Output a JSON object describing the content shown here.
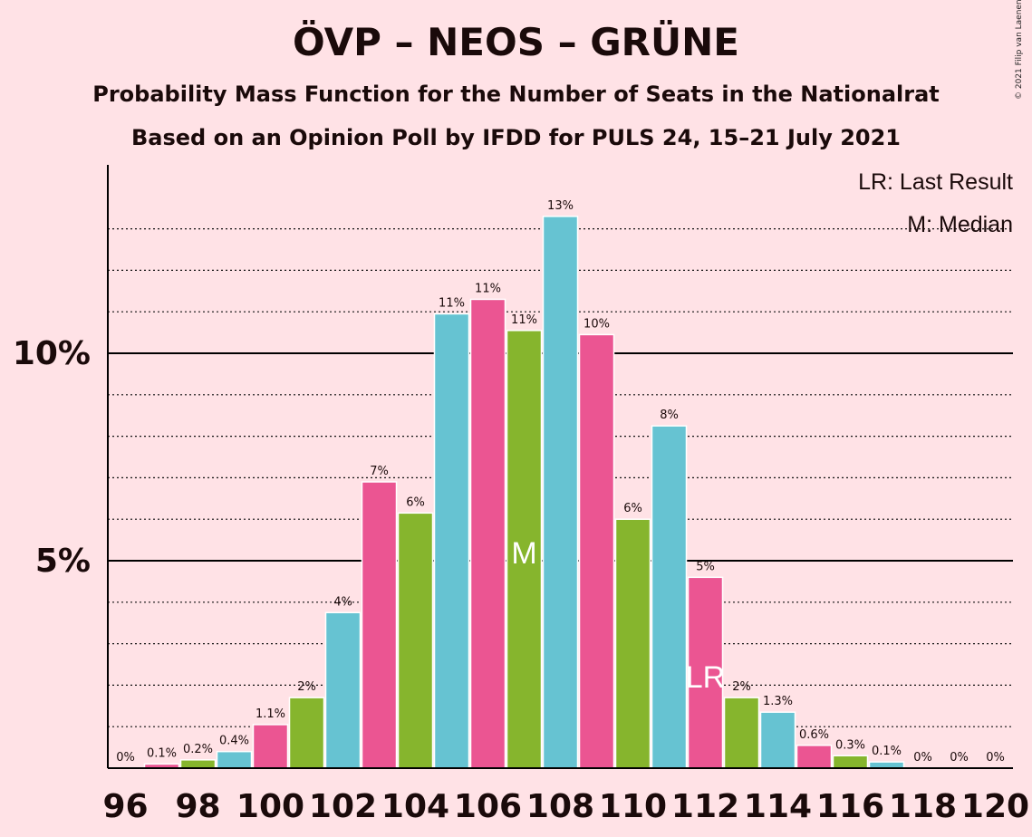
{
  "title": "ÖVP – NEOS – GRÜNE",
  "subtitle1": "Probability Mass Function for the Number of Seats in the Nationalrat",
  "subtitle2": "Based on an Opinion Poll by IFDD for PULS 24, 15–21 July 2021",
  "copyright": "© 2021 Filip van Laenen",
  "legend": {
    "last_result": "LR: Last Result",
    "median": "M: Median"
  },
  "colors": {
    "background": "#FFE2E6",
    "pink": "#EB5592",
    "green": "#86B52D",
    "blue": "#66C3D2"
  },
  "chart_data": {
    "type": "bar",
    "x": [
      96,
      97,
      98,
      99,
      100,
      101,
      102,
      103,
      104,
      105,
      106,
      107,
      108,
      109,
      110,
      111,
      112,
      113,
      114,
      115,
      116,
      117,
      118,
      119,
      120
    ],
    "values": [
      0,
      0.1,
      0.2,
      0.4,
      1.05,
      1.7,
      3.75,
      6.9,
      6.15,
      10.95,
      11.3,
      10.55,
      13.3,
      10.45,
      6.0,
      8.25,
      4.6,
      1.7,
      1.35,
      0.55,
      0.3,
      0.15,
      0,
      0,
      0
    ],
    "labels": [
      "0%",
      "0.1%",
      "0.2%",
      "0.4%",
      "1.1%",
      "2%",
      "4%",
      "7%",
      "6%",
      "11%",
      "11%",
      "11%",
      "13%",
      "10%",
      "6%",
      "8%",
      "5%",
      "2%",
      "1.3%",
      "0.6%",
      "0.3%",
      "0.1%",
      "0%",
      "0%",
      "0%"
    ],
    "bar_colors": [
      "#EB5592",
      "#EB5592",
      "#86B52D",
      "#66C3D2",
      "#EB5592",
      "#86B52D",
      "#66C3D2",
      "#EB5592",
      "#86B52D",
      "#66C3D2",
      "#EB5592",
      "#86B52D",
      "#66C3D2",
      "#EB5592",
      "#86B52D",
      "#66C3D2",
      "#EB5592",
      "#86B52D",
      "#66C3D2",
      "#EB5592",
      "#86B52D",
      "#66C3D2",
      "#EB5592",
      "#86B52D",
      "#66C3D2"
    ],
    "x_ticks": [
      96,
      98,
      100,
      102,
      104,
      106,
      108,
      110,
      112,
      114,
      116,
      118,
      120
    ],
    "x_tick_labels": [
      "96",
      "98",
      "100",
      "102",
      "104",
      "106",
      "108",
      "110",
      "112",
      "114",
      "116",
      "118",
      "120"
    ],
    "y_ticks": [
      5,
      10
    ],
    "y_tick_labels": [
      "5%",
      "10%"
    ],
    "ylim": [
      0,
      14.5
    ],
    "minor_gridlines": [
      1,
      2,
      3,
      4,
      6,
      7,
      8,
      9,
      11,
      12,
      13
    ],
    "median": {
      "x": 107,
      "label": "M"
    },
    "last_result": {
      "x": 112,
      "label": "LR"
    }
  }
}
